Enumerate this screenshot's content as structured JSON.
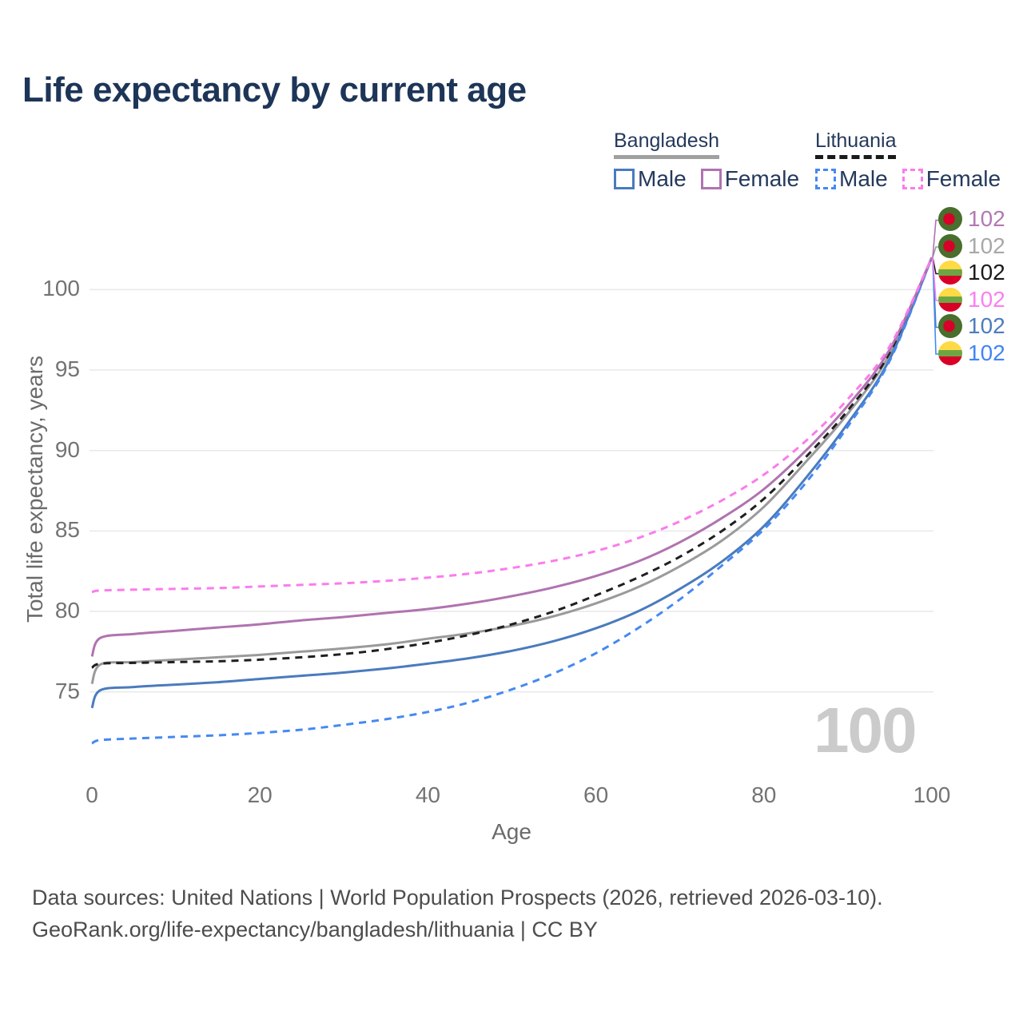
{
  "title": "Life expectancy by current age",
  "legend": {
    "groups": [
      {
        "name": "Bangladesh",
        "underline_color": "#a0a0a0",
        "underline_style": "solid",
        "items": [
          {
            "label": "Male",
            "color": "#4a7bbd",
            "dashed": "false"
          },
          {
            "label": "Female",
            "color": "#b073b0",
            "dashed": "false"
          }
        ]
      },
      {
        "name": "Lithuania",
        "underline_color": "#1a1a1a",
        "underline_style": "dashed",
        "items": [
          {
            "label": "Male",
            "color": "#4589f2",
            "dashed": "true"
          },
          {
            "label": "Female",
            "color": "#fb7ceb",
            "dashed": "true"
          }
        ]
      }
    ]
  },
  "end_labels": [
    {
      "value": "102",
      "flag": "bangladesh",
      "color": "#b279b2"
    },
    {
      "value": "102",
      "flag": "bangladesh",
      "color": "#a8a8a8"
    },
    {
      "value": "102",
      "flag": "lithuania",
      "color": "#1a1a1a"
    },
    {
      "value": "102",
      "flag": "lithuania",
      "color": "#fb7ff0"
    },
    {
      "value": "102",
      "flag": "bangladesh",
      "color": "#4c7cbd"
    },
    {
      "value": "102",
      "flag": "lithuania",
      "color": "#4285f4"
    }
  ],
  "watermark": "100",
  "axes": {
    "x_label": "Age",
    "y_label": "Total life expectancy, years",
    "x_ticks": [
      0,
      20,
      40,
      60,
      80,
      100
    ],
    "y_ticks": [
      75,
      80,
      85,
      90,
      95,
      100
    ]
  },
  "footer": {
    "line1": "Data sources: United Nations | World Population Prospects (2026, retrieved 2026-03-10).",
    "line2": "GeoRank.org/life-expectancy/bangladesh/lithuania | CC BY"
  },
  "chart_data": {
    "type": "line",
    "title": "Life expectancy by current age",
    "xlabel": "Age",
    "ylabel": "Total life expectancy, years",
    "xlim": [
      0,
      100
    ],
    "ylim": [
      70,
      103
    ],
    "grid": "horizontal gridlines at y ticks 75-100",
    "legend_position": "top-right",
    "end_value_label": "102",
    "current_age_indicator": "100",
    "x": [
      0,
      1,
      5,
      10,
      15,
      20,
      25,
      30,
      35,
      40,
      45,
      50,
      55,
      60,
      65,
      70,
      75,
      80,
      85,
      90,
      95,
      100
    ],
    "series": [
      {
        "name": "Bangladesh — Both sexes",
        "country": "bangladesh",
        "sex": "both",
        "style": "solid",
        "color": "#9a9a9a",
        "end_label_index": 1,
        "values": [
          75.5,
          76.7,
          76.85,
          77.0,
          77.15,
          77.3,
          77.5,
          77.7,
          77.95,
          78.3,
          78.65,
          79.1,
          79.7,
          80.5,
          81.5,
          82.8,
          84.4,
          86.5,
          89.3,
          92.3,
          96.0,
          102
        ]
      },
      {
        "name": "Lithuania — Both sexes",
        "country": "lithuania",
        "sex": "both",
        "style": "dashed",
        "color": "#1f1f1f",
        "end_label_index": 2,
        "values": [
          76.5,
          76.75,
          76.8,
          76.85,
          76.9,
          77.0,
          77.15,
          77.35,
          77.65,
          78.05,
          78.55,
          79.2,
          80.0,
          81.0,
          82.1,
          83.4,
          85.0,
          87.0,
          89.6,
          92.5,
          96.1,
          102
        ]
      },
      {
        "name": "Bangladesh — Male",
        "country": "bangladesh",
        "sex": "male",
        "style": "solid",
        "color": "#4a7bbd",
        "end_label_index": 4,
        "values": [
          74.0,
          75.1,
          75.3,
          75.45,
          75.6,
          75.8,
          76.0,
          76.2,
          76.45,
          76.75,
          77.1,
          77.55,
          78.15,
          78.95,
          80.0,
          81.4,
          83.1,
          85.3,
          88.3,
          91.7,
          95.7,
          102
        ]
      },
      {
        "name": "Lithuania — Male",
        "country": "lithuania",
        "sex": "male",
        "style": "dashed",
        "color": "#4589f2",
        "end_label_index": 5,
        "values": [
          71.8,
          72.0,
          72.1,
          72.2,
          72.3,
          72.45,
          72.65,
          72.95,
          73.3,
          73.75,
          74.35,
          75.15,
          76.15,
          77.4,
          78.95,
          80.75,
          82.85,
          85.1,
          88.0,
          91.5,
          95.6,
          102
        ]
      },
      {
        "name": "Bangladesh — Female",
        "country": "bangladesh",
        "sex": "female",
        "style": "solid",
        "color": "#b073b0",
        "end_label_index": 0,
        "values": [
          77.2,
          78.35,
          78.6,
          78.8,
          79.0,
          79.2,
          79.45,
          79.65,
          79.9,
          80.15,
          80.5,
          80.95,
          81.5,
          82.2,
          83.1,
          84.3,
          85.8,
          87.6,
          90.0,
          92.8,
          96.3,
          102
        ]
      },
      {
        "name": "Lithuania — Female",
        "country": "lithuania",
        "sex": "female",
        "style": "dashed",
        "color": "#fb7ceb",
        "end_label_index": 3,
        "values": [
          81.2,
          81.3,
          81.35,
          81.4,
          81.45,
          81.55,
          81.65,
          81.75,
          81.9,
          82.1,
          82.35,
          82.7,
          83.15,
          83.75,
          84.55,
          85.6,
          86.9,
          88.5,
          90.6,
          93.2,
          96.5,
          102
        ]
      }
    ]
  }
}
